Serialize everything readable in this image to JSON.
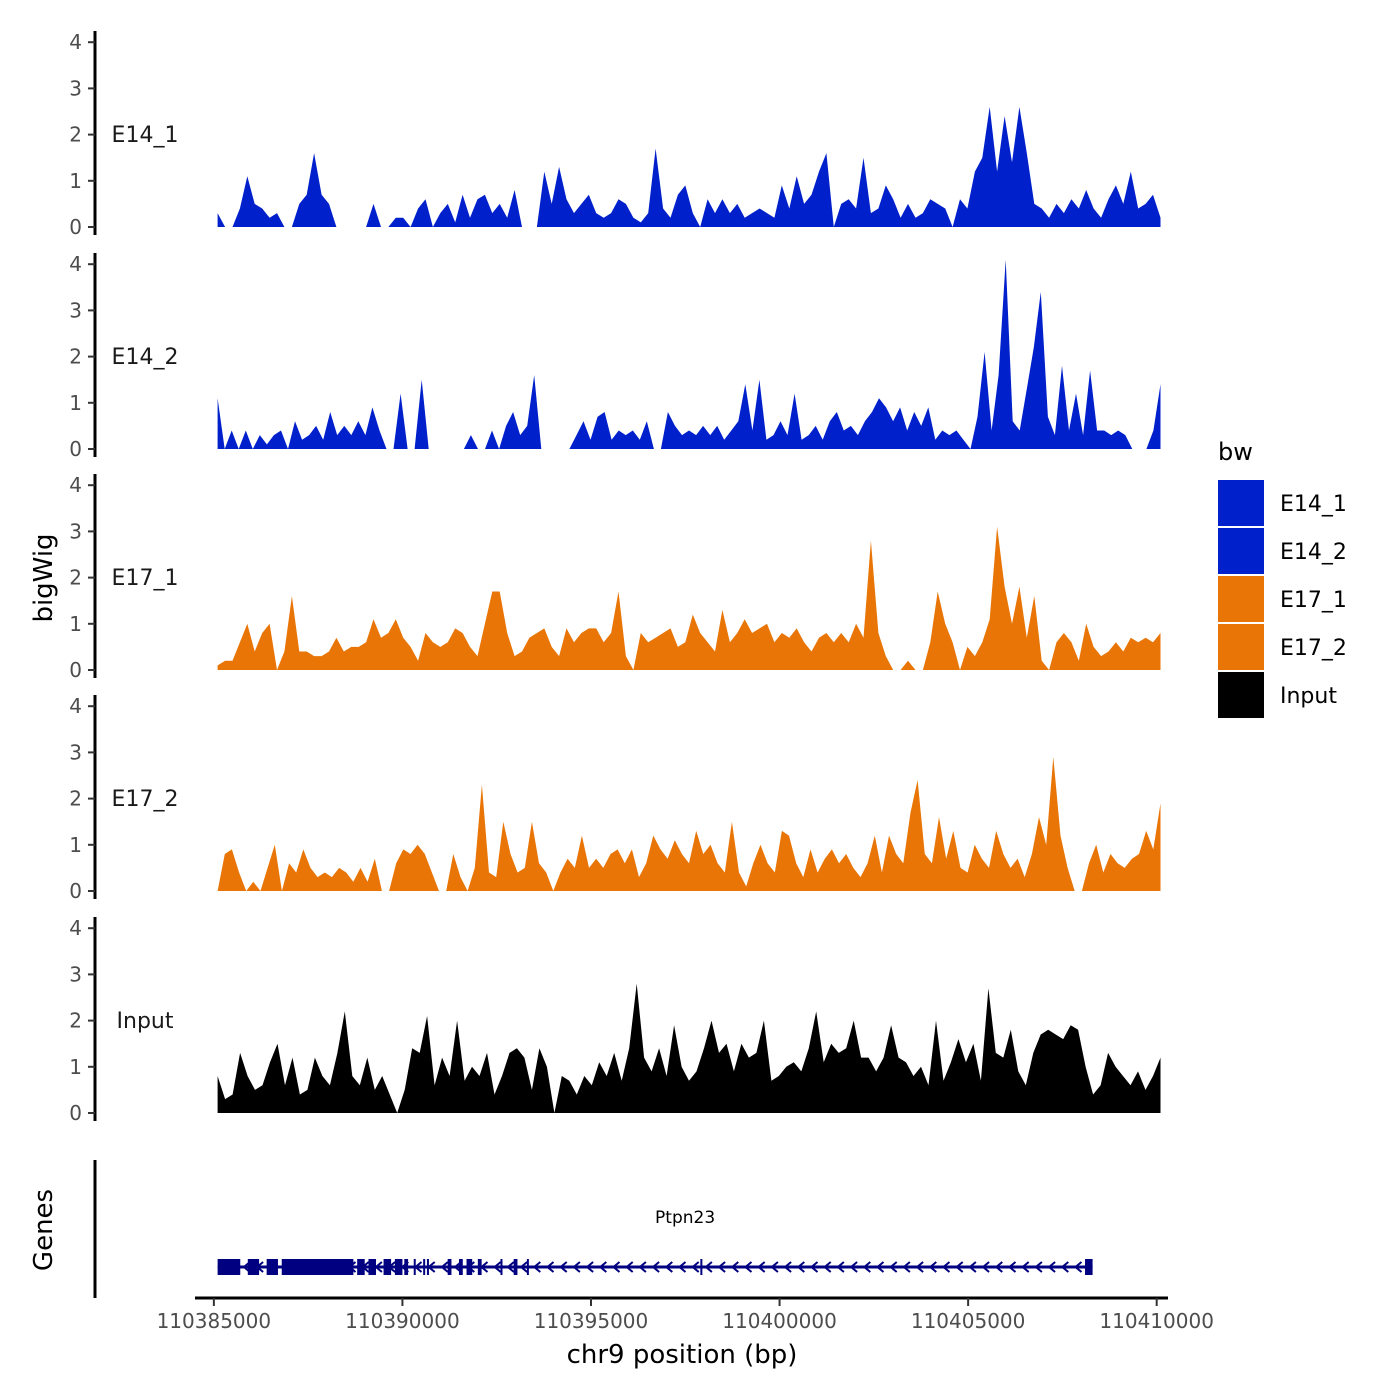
{
  "chart_data": {
    "type": "area",
    "title": "",
    "ylabel": "bigWig",
    "xlabel": "chr9 position (bp)",
    "xlim": [
      110384500,
      110410300
    ],
    "x_range": [
      110385100,
      110410100
    ],
    "ylim": [
      0,
      4.2
    ],
    "yticks": [
      "0",
      "1",
      "2",
      "3",
      "4"
    ],
    "xticks": [
      "110385000",
      "110390000",
      "110395000",
      "110400000",
      "110405000",
      "110410000"
    ],
    "xtick_values": [
      110385000,
      110390000,
      110395000,
      110400000,
      110405000,
      110410000
    ],
    "series": [
      {
        "name": "E14_1",
        "color": "#0020CC",
        "values": [
          0.3,
          0,
          0,
          0.4,
          1.1,
          0.5,
          0.4,
          0.2,
          0.3,
          0,
          0,
          0.5,
          0.7,
          1.6,
          0.7,
          0.5,
          0,
          0,
          0,
          0,
          0,
          0.5,
          0,
          0,
          0.2,
          0.2,
          0,
          0.4,
          0.6,
          0,
          0.3,
          0.5,
          0.1,
          0.7,
          0.2,
          0.6,
          0.7,
          0.3,
          0.5,
          0.2,
          0.8,
          0,
          0,
          0,
          1.2,
          0.5,
          1.3,
          0.6,
          0.3,
          0.5,
          0.7,
          0.3,
          0.2,
          0.3,
          0.6,
          0.5,
          0.2,
          0.1,
          0.3,
          1.7,
          0.4,
          0.2,
          0.7,
          0.9,
          0.3,
          0,
          0.6,
          0.3,
          0.6,
          0.3,
          0.5,
          0.2,
          0.3,
          0.4,
          0.3,
          0.2,
          0.9,
          0.4,
          1.1,
          0.5,
          0.7,
          1.2,
          1.6,
          0,
          0.5,
          0.6,
          0.4,
          1.5,
          0.3,
          0.4,
          0.9,
          0.6,
          0.2,
          0.5,
          0.2,
          0.3,
          0.6,
          0.5,
          0.4,
          0,
          0.6,
          0.4,
          1.2,
          1.5,
          2.6,
          1.2,
          2.4,
          1.4,
          2.6,
          1.6,
          0.5,
          0.4,
          0.2,
          0.5,
          0.3,
          0.6,
          0.4,
          0.8,
          0.4,
          0.2,
          0.6,
          0.9,
          0.5,
          1.2,
          0.4,
          0.5,
          0.7,
          0.2
        ],
        "row_label": "E14_1"
      },
      {
        "name": "E14_2",
        "color": "#0020CC",
        "values": [
          1.1,
          0,
          0.4,
          0,
          0.4,
          0,
          0.3,
          0.1,
          0.3,
          0.4,
          0,
          0.6,
          0.2,
          0.3,
          0.5,
          0.2,
          0.8,
          0.3,
          0.5,
          0.3,
          0.6,
          0.3,
          0.9,
          0.4,
          0,
          0,
          1.2,
          0,
          0,
          1.5,
          0,
          0,
          0,
          0,
          0,
          0,
          0.3,
          0,
          0,
          0.4,
          0,
          0.5,
          0.8,
          0.3,
          0.5,
          1.6,
          0,
          0,
          0,
          0,
          0,
          0.3,
          0.6,
          0.2,
          0.7,
          0.8,
          0.2,
          0.4,
          0.3,
          0.4,
          0.2,
          0.6,
          0,
          0,
          0.8,
          0.5,
          0.3,
          0.4,
          0.3,
          0.5,
          0.3,
          0.5,
          0.2,
          0.4,
          0.6,
          1.4,
          0.4,
          1.5,
          0.2,
          0.3,
          0.6,
          0.3,
          1.2,
          0.2,
          0.3,
          0.5,
          0.2,
          0.6,
          0.8,
          0.4,
          0.5,
          0.3,
          0.6,
          0.8,
          1.1,
          0.9,
          0.6,
          0.9,
          0.4,
          0.8,
          0.5,
          0.9,
          0.2,
          0.4,
          0.3,
          0.4,
          0.2,
          0,
          0.7,
          2.1,
          0.4,
          1.6,
          4.1,
          0.6,
          0.4,
          1.3,
          2.2,
          3.4,
          0.7,
          0.3,
          1.8,
          0.4,
          1.2,
          0.3,
          1.7,
          0.4,
          0.4,
          0.3,
          0.4,
          0.3,
          0,
          0,
          0,
          0.4,
          1.4
        ]
      },
      {
        "name": "E17_1",
        "color": "#E87506",
        "values": [
          0.1,
          0.2,
          0.2,
          0.6,
          1,
          0.4,
          0.8,
          1,
          0,
          0.4,
          1.6,
          0.4,
          0.4,
          0.3,
          0.3,
          0.4,
          0.7,
          0.4,
          0.5,
          0.5,
          0.6,
          1.1,
          0.7,
          0.8,
          1.1,
          0.7,
          0.5,
          0.2,
          0.8,
          0.6,
          0.5,
          0.6,
          0.9,
          0.8,
          0.5,
          0.3,
          1,
          1.7,
          1.7,
          0.8,
          0.3,
          0.4,
          0.7,
          0.8,
          0.9,
          0.5,
          0.3,
          0.9,
          0.6,
          0.8,
          0.9,
          0.9,
          0.6,
          0.8,
          1.7,
          0.3,
          0,
          0.8,
          0.6,
          0.7,
          0.8,
          0.9,
          0.5,
          0.6,
          1.2,
          0.8,
          0.6,
          0.4,
          1.3,
          0.6,
          0.8,
          1.1,
          0.8,
          0.9,
          1,
          0.6,
          0.8,
          0.7,
          0.9,
          0.6,
          0.4,
          0.7,
          0.8,
          0.6,
          0.8,
          0.6,
          1.0,
          0.7,
          2.8,
          0.8,
          0.3,
          0,
          0,
          0.2,
          0,
          0,
          0.6,
          1.7,
          1,
          0.6,
          0,
          0.5,
          0.3,
          0.6,
          1.1,
          3.1,
          1.8,
          1,
          1.8,
          0.7,
          1.6,
          0.2,
          0,
          0.6,
          0.8,
          0.6,
          0.2,
          1,
          0.5,
          0.3,
          0.4,
          0.6,
          0.4,
          0.7,
          0.6,
          0.7,
          0.6,
          0.8
        ]
      },
      {
        "name": "E17_2",
        "color": "#E87506",
        "values": [
          0,
          0.8,
          0.9,
          0.4,
          0,
          0.2,
          0,
          0.5,
          1,
          0,
          0.6,
          0.4,
          0.9,
          0.5,
          0.3,
          0.4,
          0.3,
          0.5,
          0.4,
          0.2,
          0.5,
          0.2,
          0.7,
          0,
          0,
          0.6,
          0.9,
          0.8,
          1,
          0.8,
          0.4,
          0,
          0,
          0.8,
          0.3,
          0,
          0.5,
          2.3,
          0.4,
          0.3,
          1.5,
          0.8,
          0.4,
          0.5,
          1.5,
          0.6,
          0.4,
          0,
          0.4,
          0.7,
          0.5,
          1.2,
          0.5,
          0.7,
          0.5,
          0.8,
          0.9,
          0.6,
          0.9,
          0.3,
          0.6,
          1.2,
          0.9,
          0.7,
          1.1,
          0.8,
          0.6,
          1.3,
          0.8,
          1,
          0.6,
          0.4,
          1.5,
          0.4,
          0.1,
          0.6,
          1,
          0.6,
          0.4,
          1.3,
          1.2,
          0.6,
          0.3,
          0.9,
          0.4,
          0.7,
          0.9,
          0.6,
          0.8,
          0.5,
          0.3,
          0.6,
          1.2,
          0.4,
          1.2,
          0.8,
          0.6,
          1.7,
          2.4,
          0.8,
          0.6,
          1.6,
          0.7,
          1.3,
          0.5,
          0.4,
          1,
          0.7,
          0.5,
          1.3,
          0.8,
          0.5,
          0.7,
          0.3,
          0.8,
          1.6,
          1.0,
          2.9,
          1.2,
          0.5,
          0,
          0,
          0.6,
          1,
          0.4,
          0.8,
          0.6,
          0.5,
          0.7,
          0.8,
          1.3,
          0.9,
          1.9
        ]
      },
      {
        "name": "Input",
        "color": "#000000",
        "values": [
          0.8,
          0.3,
          0.4,
          1.3,
          0.8,
          0.5,
          0.6,
          1.1,
          1.5,
          0.6,
          1.2,
          0.4,
          0.5,
          1.2,
          0.8,
          0.6,
          1.3,
          2.2,
          0.8,
          0.6,
          1.2,
          0.5,
          0.8,
          0.4,
          0,
          0.5,
          1.4,
          1.3,
          2.1,
          0.6,
          1.2,
          0.8,
          2.0,
          0.7,
          1.0,
          0.8,
          1.3,
          0.4,
          0.8,
          1.3,
          1.4,
          1.2,
          0.5,
          1.4,
          1.0,
          0,
          0.8,
          0.7,
          0.4,
          0.8,
          0.6,
          1.1,
          0.8,
          1.3,
          0.7,
          1.4,
          2.8,
          1.2,
          0.9,
          1.4,
          0.8,
          1.9,
          1.0,
          0.7,
          0.9,
          1.4,
          2.0,
          1.3,
          1.5,
          0.9,
          1.5,
          1.2,
          1.3,
          2.0,
          0.7,
          0.8,
          1.0,
          1.1,
          0.9,
          1.4,
          2.2,
          1.1,
          1.5,
          1.3,
          1.4,
          2.0,
          1.2,
          1.2,
          0.9,
          1.2,
          1.9,
          1.2,
          1.1,
          0.8,
          1.0,
          0.6,
          2.0,
          0.7,
          1.1,
          1.6,
          1.1,
          1.5,
          0.7,
          2.7,
          1.3,
          1.2,
          1.8,
          0.9,
          0.6,
          1.3,
          1.7,
          1.8,
          1.7,
          1.6,
          1.9,
          1.8,
          1.0,
          0.4,
          0.6,
          1.3,
          1.0,
          0.8,
          0.6,
          0.9,
          0.5,
          0.8,
          1.2
        ]
      }
    ],
    "track_labels": [
      "E14_1",
      "E14_2",
      "E17_1",
      "E17_2",
      "Input"
    ],
    "legend": {
      "title": "bw",
      "position": "right",
      "entries": [
        {
          "label": "E14_1",
          "color": "#0020CC"
        },
        {
          "label": "E14_2",
          "color": "#0020CC"
        },
        {
          "label": "E17_1",
          "color": "#E87506"
        },
        {
          "label": "E17_2",
          "color": "#E87506"
        },
        {
          "label": "Input",
          "color": "#000000"
        }
      ]
    },
    "genes_track": {
      "title": "Genes",
      "gene_name": "Ptpn23",
      "strand": "-",
      "color": "#000080",
      "start": 110385100,
      "end": 110408300,
      "exons": [
        [
          110385100,
          110385700
        ],
        [
          110385900,
          110386200
        ],
        [
          110386400,
          110386700
        ],
        [
          110386800,
          110388700
        ],
        [
          110388800,
          110389000
        ],
        [
          110389100,
          110389300
        ],
        [
          110389500,
          110389700
        ],
        [
          110389800,
          110390000
        ],
        [
          110390050,
          110390150
        ],
        [
          110390300,
          110390350
        ],
        [
          110390550,
          110390600
        ],
        [
          110390650,
          110390700
        ],
        [
          110391200,
          110391300
        ],
        [
          110391500,
          110391600
        ],
        [
          110391700,
          110391850
        ],
        [
          110392000,
          110392100
        ],
        [
          110392600,
          110392650
        ],
        [
          110392950,
          110393050
        ],
        [
          110393300,
          110393350
        ],
        [
          110397900,
          110397950
        ],
        [
          110408100,
          110408300
        ]
      ]
    }
  }
}
